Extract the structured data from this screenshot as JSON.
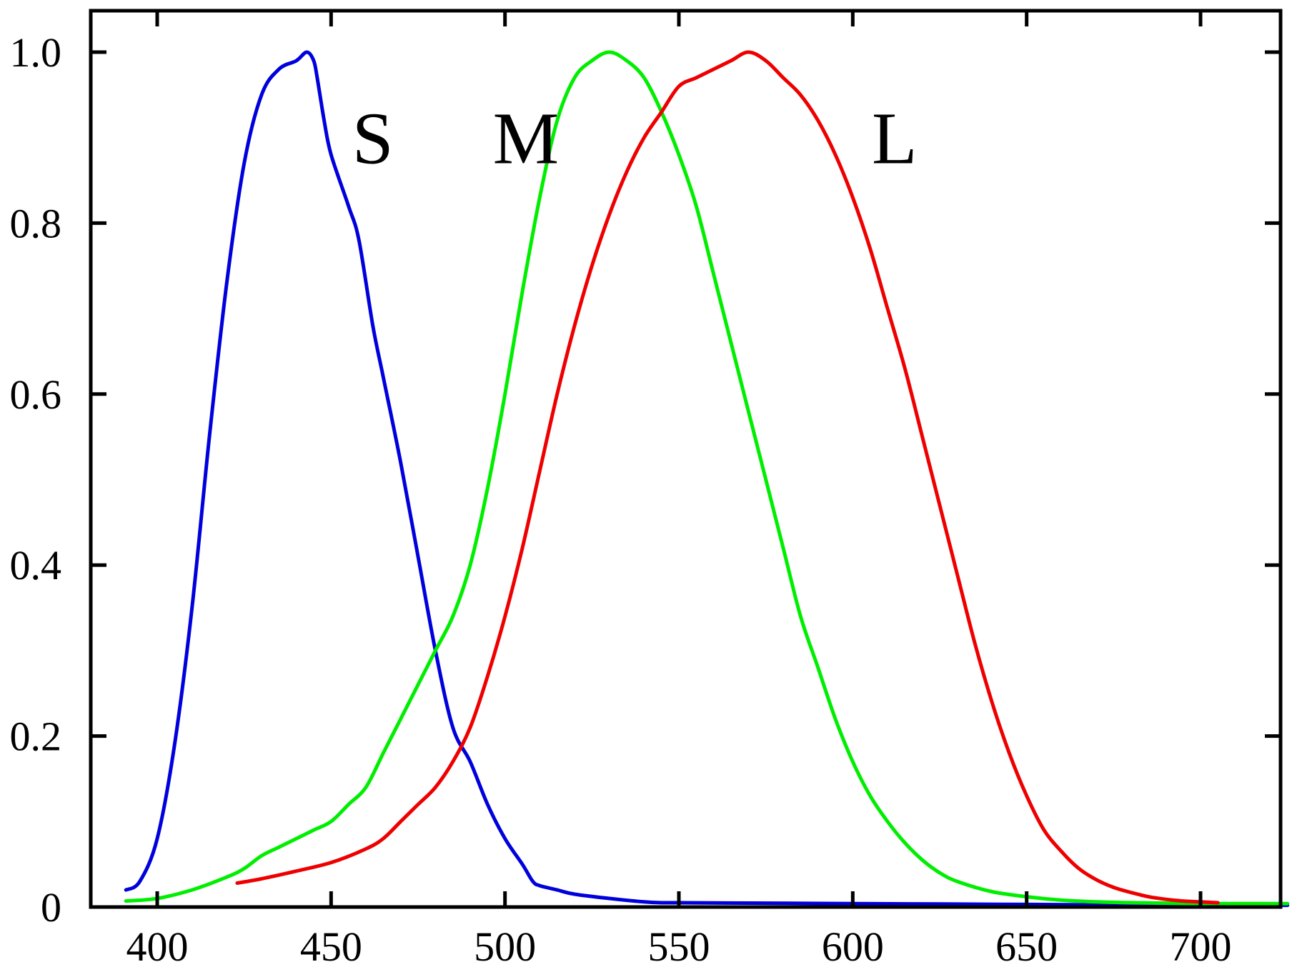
{
  "chart_data": {
    "type": "line",
    "title": "",
    "xlabel": "",
    "ylabel": "",
    "xlim": [
      390,
      725
    ],
    "ylim": [
      0,
      1.05
    ],
    "grid": false,
    "legend": "none",
    "x_ticks": [
      400,
      450,
      500,
      550,
      600,
      650,
      700
    ],
    "y_ticks": [
      0,
      0.2,
      0.4,
      0.6,
      0.8,
      1.0
    ],
    "x_tick_labels": [
      "400",
      "450",
      "500",
      "550",
      "600",
      "650",
      "700"
    ],
    "y_tick_labels": [
      "0",
      "0.2",
      "0.4",
      "0.6",
      "0.8",
      "1.0"
    ],
    "series": [
      {
        "label": "S",
        "color": "#0000dd",
        "x": [
          391,
          395,
          400,
          405,
          410,
          415,
          420,
          425,
          430,
          435,
          440,
          443,
          445,
          446,
          448,
          450,
          455,
          458,
          462,
          465,
          470,
          475,
          480,
          485,
          490,
          495,
          500,
          505,
          508,
          510,
          515,
          520,
          530,
          540,
          545,
          550,
          600,
          650,
          700,
          725
        ],
        "y": [
          0.02,
          0.03,
          0.08,
          0.19,
          0.35,
          0.55,
          0.73,
          0.87,
          0.95,
          0.98,
          0.99,
          1.0,
          0.99,
          0.97,
          0.92,
          0.88,
          0.82,
          0.78,
          0.68,
          0.62,
          0.52,
          0.41,
          0.3,
          0.21,
          0.17,
          0.12,
          0.08,
          0.05,
          0.03,
          0.025,
          0.02,
          0.015,
          0.01,
          0.006,
          0.005,
          0.005,
          0.004,
          0.003,
          0.002,
          0.002
        ]
      },
      {
        "label": "M",
        "color": "#00ee00",
        "x": [
          391,
          400,
          410,
          420,
          425,
          430,
          435,
          440,
          445,
          450,
          455,
          460,
          465,
          470,
          475,
          480,
          485,
          490,
          495,
          500,
          505,
          510,
          515,
          520,
          525,
          530,
          535,
          540,
          545,
          550,
          555,
          560,
          565,
          570,
          575,
          580,
          585,
          590,
          595,
          600,
          605,
          610,
          615,
          620,
          625,
          630,
          640,
          650,
          660,
          670,
          680,
          700,
          725
        ],
        "y": [
          0.007,
          0.01,
          0.02,
          0.035,
          0.045,
          0.06,
          0.07,
          0.08,
          0.09,
          0.1,
          0.12,
          0.14,
          0.18,
          0.22,
          0.26,
          0.3,
          0.34,
          0.4,
          0.49,
          0.6,
          0.72,
          0.83,
          0.92,
          0.97,
          0.99,
          1.0,
          0.99,
          0.97,
          0.93,
          0.88,
          0.82,
          0.74,
          0.66,
          0.58,
          0.5,
          0.42,
          0.34,
          0.28,
          0.22,
          0.17,
          0.13,
          0.1,
          0.075,
          0.055,
          0.04,
          0.03,
          0.018,
          0.012,
          0.008,
          0.006,
          0.005,
          0.004,
          0.004
        ]
      },
      {
        "label": "L",
        "color": "#ee0000",
        "x": [
          423,
          430,
          440,
          450,
          460,
          465,
          470,
          475,
          480,
          485,
          490,
          495,
          500,
          505,
          510,
          515,
          520,
          525,
          530,
          535,
          540,
          545,
          550,
          555,
          560,
          565,
          570,
          575,
          580,
          585,
          590,
          595,
          600,
          605,
          610,
          615,
          620,
          625,
          630,
          635,
          640,
          645,
          650,
          655,
          660,
          665,
          670,
          675,
          680,
          685,
          690,
          695,
          700,
          705
        ],
        "y": [
          0.028,
          0.033,
          0.042,
          0.052,
          0.068,
          0.08,
          0.1,
          0.12,
          0.14,
          0.17,
          0.21,
          0.27,
          0.34,
          0.42,
          0.51,
          0.6,
          0.68,
          0.75,
          0.81,
          0.86,
          0.9,
          0.93,
          0.96,
          0.97,
          0.98,
          0.99,
          1.0,
          0.99,
          0.97,
          0.95,
          0.92,
          0.88,
          0.83,
          0.77,
          0.7,
          0.63,
          0.55,
          0.47,
          0.39,
          0.31,
          0.24,
          0.18,
          0.13,
          0.09,
          0.065,
          0.045,
          0.032,
          0.023,
          0.017,
          0.012,
          0.009,
          0.007,
          0.006,
          0.005
        ]
      }
    ],
    "curve_labels": [
      {
        "text": "S",
        "x": 462,
        "y": 0.9
      },
      {
        "text": "M",
        "x": 506,
        "y": 0.9
      },
      {
        "text": "L",
        "x": 612,
        "y": 0.9
      }
    ]
  }
}
